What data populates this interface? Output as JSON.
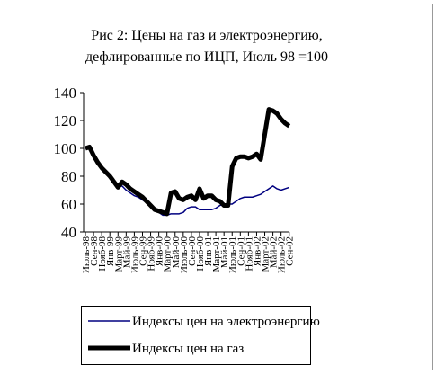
{
  "chart_data": {
    "type": "line",
    "title": [
      "Рис 2: Цены на газ и электроэнергию,",
      "дефлированные по ИЦП, Июль 98 =100"
    ],
    "categories": [
      "Июль-98",
      null,
      "Сен-98",
      null,
      "Нояб-98",
      null,
      "Янв-99",
      null,
      "Март-99",
      null,
      "Май-99",
      null,
      "Июль-99",
      null,
      "Сен-99",
      null,
      "Нояб-99",
      null,
      "Янв-00",
      null,
      "Март-00",
      null,
      "Май-00",
      null,
      "Июль-00",
      null,
      "Сен-00",
      null,
      "Нояб-00",
      null,
      "Янв-01",
      null,
      "Март-01",
      null,
      "Май-01",
      null,
      "Июль-01",
      null,
      "Сен-01",
      null,
      "Нояб-01",
      null,
      "Янв-02",
      null,
      "Март-02",
      null,
      "Май-02",
      null,
      "Июль-02",
      null,
      "Сен-02"
    ],
    "series": [
      {
        "name": "Индексы цен на электроэнергию",
        "color": "#000080",
        "width": 1.5,
        "values": [
          100,
          101,
          95,
          90,
          86,
          82,
          79,
          75,
          72,
          73,
          70,
          68,
          66,
          65,
          63,
          61,
          58,
          56,
          54,
          52,
          52,
          53,
          53,
          53,
          54,
          57,
          58,
          58,
          56,
          56,
          56,
          56,
          57,
          59,
          60,
          60,
          60,
          62,
          64,
          65,
          65,
          65,
          66,
          67,
          69,
          71,
          73,
          71,
          70,
          71,
          72
        ]
      },
      {
        "name": "Индексы цен на газ",
        "color": "#000000",
        "width": 5,
        "values": [
          100,
          101,
          95,
          90,
          86,
          83,
          80,
          76,
          72,
          76,
          74,
          71,
          69,
          67,
          65,
          62,
          59,
          56,
          55,
          54,
          53,
          68,
          69,
          64,
          63,
          65,
          66,
          63,
          71,
          64,
          66,
          66,
          63,
          62,
          59,
          59,
          87,
          93,
          94,
          94,
          93,
          94,
          96,
          92,
          110,
          128,
          127,
          125,
          121,
          118,
          116
        ]
      }
    ],
    "ylim": [
      40,
      140
    ],
    "yticks": [
      40,
      60,
      80,
      100,
      120,
      140
    ],
    "grid": false
  }
}
